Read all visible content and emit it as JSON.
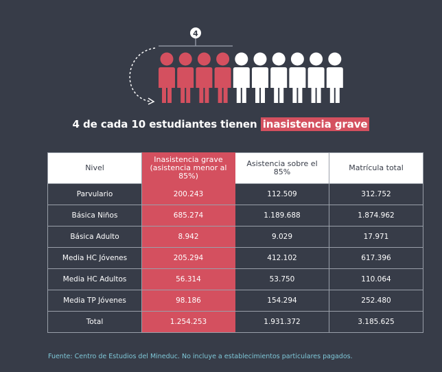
{
  "figure": {
    "callout_number": "4",
    "total_people": 10,
    "highlighted_people": 4,
    "colors": {
      "highlight": "#d4505f",
      "neutral": "#ffffff",
      "background": "#373c48",
      "source_text": "#7fc8d8"
    }
  },
  "headline": {
    "prefix": "4 de cada 10 estudiantes tienen",
    "highlight": "inasistencia grave"
  },
  "table": {
    "headers": [
      "Nivel",
      "Inasistencia grave (asistencia menor al 85%)",
      "Asistencia sobre el 85%",
      "Matrícula total"
    ],
    "rows": [
      [
        "Parvulario",
        "200.243",
        "112.509",
        "312.752"
      ],
      [
        "Básica Niños",
        "685.274",
        "1.189.688",
        "1.874.962"
      ],
      [
        "Básica Adulto",
        "8.942",
        "9.029",
        "17.971"
      ],
      [
        "Media HC Jóvenes",
        "205.294",
        "412.102",
        "617.396"
      ],
      [
        "Media HC Adultos",
        "56.314",
        "53.750",
        "110.064"
      ],
      [
        "Media TP Jóvenes",
        "98.186",
        "154.294",
        "252.480"
      ],
      [
        "Total",
        "1.254.253",
        "1.931.372",
        "3.185.625"
      ]
    ]
  },
  "source": "Fuente: Centro de Estudios del Mineduc. No incluye a establecimientos particulares pagados."
}
